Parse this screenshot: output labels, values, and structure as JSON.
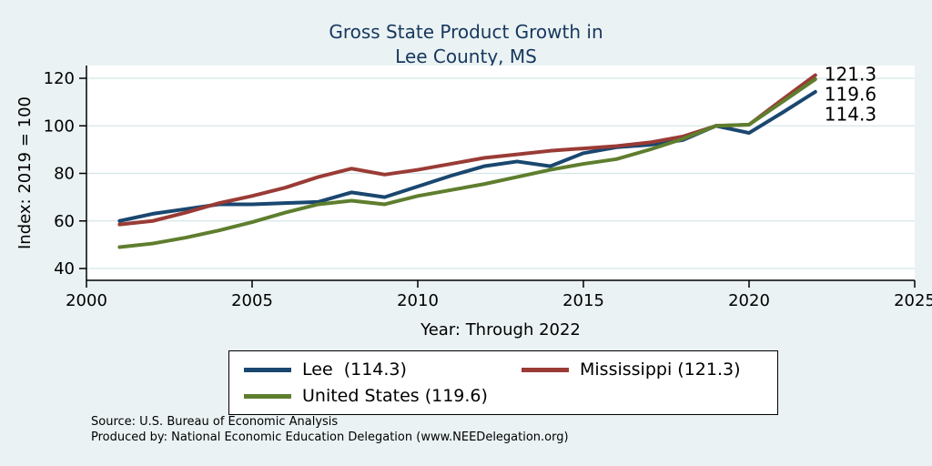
{
  "title": {
    "line1": "Gross State Product Growth in",
    "line2": "Lee County, MS"
  },
  "axes": {
    "y_label": "Index: 2019 = 100",
    "x_label": "Year: Through 2022",
    "y_ticks": [
      40,
      60,
      80,
      100,
      120
    ],
    "x_ticks": [
      2000,
      2005,
      2010,
      2015,
      2020,
      2025
    ]
  },
  "chart_data": {
    "type": "line",
    "title": "Gross State Product Growth in Lee County, MS",
    "xlabel": "Year: Through 2022",
    "ylabel": "Index: 2019 = 100",
    "xlim": [
      2000,
      2025
    ],
    "ylim": [
      40,
      125
    ],
    "grid": true,
    "legend_position": "bottom",
    "x": [
      2001,
      2002,
      2003,
      2004,
      2005,
      2006,
      2007,
      2008,
      2009,
      2010,
      2011,
      2012,
      2013,
      2014,
      2015,
      2016,
      2017,
      2018,
      2019,
      2020,
      2021,
      2022
    ],
    "series": [
      {
        "name": "Lee",
        "key": "lee",
        "color": "#1a476f",
        "end_label": "114.3",
        "values": [
          60,
          63,
          65,
          67,
          67,
          67.5,
          68,
          72,
          70,
          74.5,
          79,
          83,
          85,
          83,
          88.5,
          91,
          92,
          94,
          100,
          97,
          105.5,
          114.3
        ]
      },
      {
        "name": "Mississippi",
        "key": "mississippi",
        "color": "#9a3b36",
        "end_label": "121.3",
        "values": [
          58.5,
          60,
          63.5,
          67.5,
          70.5,
          74,
          78.5,
          82,
          79.5,
          81.5,
          84,
          86.5,
          88,
          89.5,
          90.5,
          91.5,
          93,
          95.5,
          100,
          100.5,
          111,
          121.3
        ]
      },
      {
        "name": "United States",
        "key": "us",
        "color": "#5e7e2e",
        "end_label": "119.6",
        "values": [
          49,
          50.5,
          53,
          56,
          59.5,
          63.5,
          67,
          68.5,
          67,
          70.5,
          73,
          75.5,
          78.5,
          81.5,
          84,
          86,
          90,
          94.5,
          100,
          100.5,
          110,
          119.6
        ]
      }
    ]
  },
  "legend": {
    "items": [
      {
        "key": "lee",
        "label": "Lee  (114.3)",
        "color": "#1a476f"
      },
      {
        "key": "mississippi",
        "label": "Mississippi (121.3)",
        "color": "#9a3b36"
      },
      {
        "key": "us",
        "label": "United States (119.6)",
        "color": "#5e7e2e"
      }
    ]
  },
  "footer": {
    "source": "Source: U.S. Bureau of Economic Analysis",
    "produced_by": "Produced by: National Economic Education Delegation (www.NEEDelegation.org)"
  },
  "colors": {
    "background": "#eaf2f3",
    "plot_background": "#ffffff",
    "title_text": "#17375e",
    "grid_line": "#d4e6e8",
    "axis_line": "#000000"
  }
}
